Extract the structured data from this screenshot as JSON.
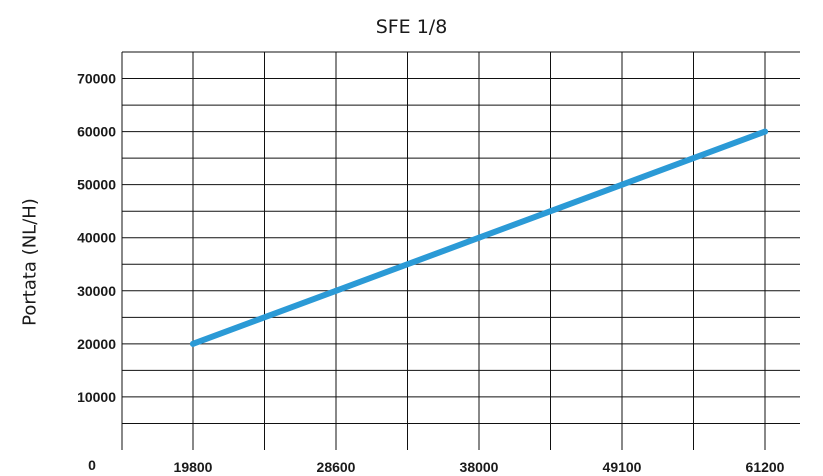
{
  "chart_data": {
    "type": "line",
    "title": "SFE 1/8",
    "ylabel": "Portata (NL/H)",
    "xlabel": "",
    "x_tick_labels": [
      "19800",
      "28600",
      "38000",
      "49100",
      "61200"
    ],
    "x_origin_label": "0",
    "y_tick_labels": [
      "10000",
      "20000",
      "30000",
      "40000",
      "50000",
      "60000",
      "70000"
    ],
    "ylim": [
      0,
      75000
    ],
    "grid": true,
    "series": [
      {
        "color": "#2b9ad6",
        "x": [
          19800,
          28600,
          38000,
          49100,
          61200
        ],
        "y": [
          20000,
          30000,
          40000,
          50000,
          60000
        ]
      }
    ]
  }
}
